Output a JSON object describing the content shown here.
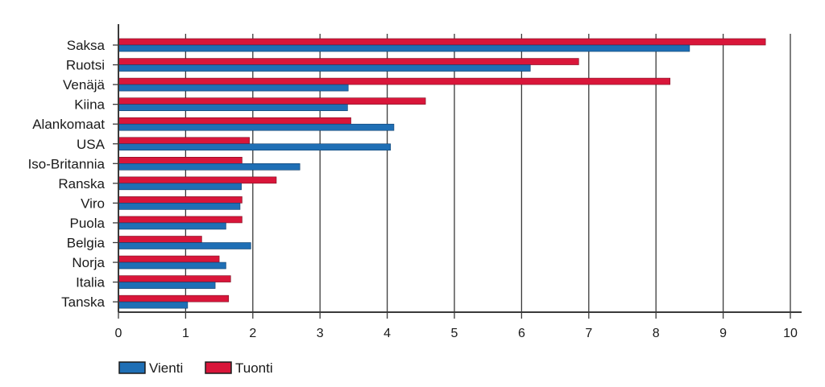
{
  "chart_data": {
    "type": "bar",
    "orientation": "horizontal",
    "title": "",
    "xlabel": "",
    "ylabel": "",
    "xlim": [
      0,
      10
    ],
    "xticks": [
      "0",
      "1",
      "2",
      "3",
      "4",
      "5",
      "6",
      "7",
      "8",
      "9",
      "10"
    ],
    "grid": "vertical",
    "legend_position": "bottom-left",
    "categories": [
      "Saksa",
      "Ruotsi",
      "Venäjä",
      "Kiina",
      "Alankomaat",
      "USA",
      "Iso-Britannia",
      "Ranska",
      "Viro",
      "Puola",
      "Belgia",
      "Norja",
      "Italia",
      "Tanska"
    ],
    "series": [
      {
        "name": "Vienti",
        "color": "#1f6fb5",
        "values": [
          8.5,
          6.13,
          3.42,
          3.41,
          4.1,
          4.05,
          2.7,
          1.83,
          1.81,
          1.6,
          1.97,
          1.6,
          1.44,
          1.03
        ]
      },
      {
        "name": "Tuonti",
        "color": "#d9163a",
        "values": [
          9.63,
          6.85,
          8.21,
          4.57,
          3.46,
          1.95,
          1.84,
          2.35,
          1.84,
          1.84,
          1.24,
          1.5,
          1.67,
          1.64
        ]
      }
    ]
  }
}
